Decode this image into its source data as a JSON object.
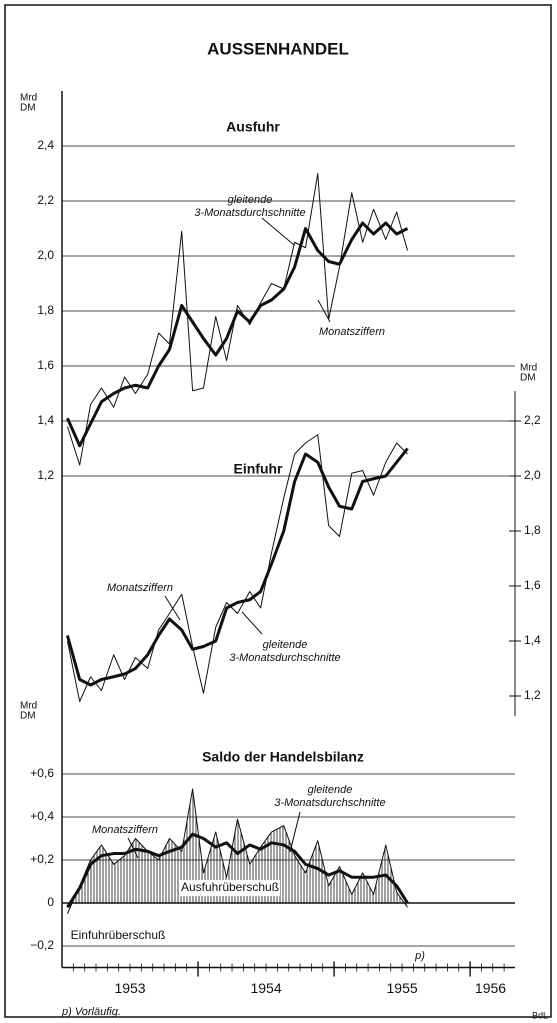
{
  "title": "AUSSENHANDEL",
  "footnote": "p) Vorläufig.",
  "source": "BdL",
  "chart_data": [
    {
      "type": "line",
      "y_label": [
        "Mrd",
        "DM"
      ],
      "y2_label": [
        "Mrd",
        "DM"
      ],
      "x": [
        1953.04,
        1953.13,
        1953.21,
        1953.29,
        1953.38,
        1953.46,
        1953.54,
        1953.63,
        1953.71,
        1953.79,
        1953.88,
        1953.96,
        1954.04,
        1954.13,
        1954.21,
        1954.29,
        1954.38,
        1954.46,
        1954.54,
        1954.63,
        1954.71,
        1954.79,
        1954.88,
        1954.96,
        1955.04,
        1955.13,
        1955.21,
        1955.29,
        1955.38,
        1955.46,
        1955.54
      ],
      "xlim": [
        1953.0,
        1956.33
      ],
      "ylim": [
        0.3,
        2.6
      ],
      "yticks": [
        {
          "value": 2.4,
          "label": "2,4"
        },
        {
          "value": 2.2,
          "label": "2,2"
        },
        {
          "value": 2.0,
          "label": "2,0"
        },
        {
          "value": 1.8,
          "label": "1,8"
        },
        {
          "value": 1.6,
          "label": "1,6"
        },
        {
          "value": 1.4,
          "label": "1,4"
        },
        {
          "value": 1.2,
          "label": "1,2"
        }
      ],
      "y2lim": [
        1.1,
        3.4
      ],
      "y2ticks": [
        {
          "value": 2.2,
          "label": "2,2"
        },
        {
          "value": 2.0,
          "label": "2,0"
        },
        {
          "value": 1.8,
          "label": "1,8"
        },
        {
          "value": 1.6,
          "label": "1,6"
        },
        {
          "value": 1.4,
          "label": "1,4"
        },
        {
          "value": 1.2,
          "label": "1,2"
        }
      ],
      "grid": true,
      "series": [
        {
          "color": "#111",
          "width": 1,
          "values": [
            1.38,
            1.24,
            1.46,
            1.52,
            1.45,
            1.56,
            1.5,
            1.57,
            1.72,
            1.68,
            2.09,
            1.51,
            1.52,
            1.78,
            1.62,
            1.82,
            1.75,
            1.83,
            1.9,
            1.88,
            2.05,
            2.03,
            2.3,
            1.77,
            1.96,
            2.23,
            2.05,
            2.17,
            2.06,
            2.16,
            2.02
          ]
        },
        {
          "color": "#111",
          "width": 3,
          "values": [
            1.41,
            1.31,
            1.39,
            1.47,
            1.5,
            1.52,
            1.53,
            1.52,
            1.6,
            1.66,
            1.82,
            1.76,
            1.7,
            1.64,
            1.7,
            1.8,
            1.76,
            1.82,
            1.84,
            1.88,
            1.96,
            2.1,
            2.02,
            1.98,
            1.97,
            2.06,
            2.12,
            2.08,
            2.12,
            2.08,
            2.1
          ]
        },
        {
          "color": "#111",
          "width": 1,
          "axis": "y2",
          "values": [
            1.4,
            1.18,
            1.27,
            1.22,
            1.35,
            1.26,
            1.34,
            1.3,
            1.44,
            1.5,
            1.57,
            1.38,
            1.21,
            1.45,
            1.54,
            1.5,
            1.58,
            1.52,
            1.72,
            1.92,
            2.08,
            2.12,
            2.15,
            1.82,
            1.78,
            2.01,
            2.02,
            1.93,
            2.05,
            2.12,
            2.08
          ]
        },
        {
          "color": "#111",
          "width": 3,
          "axis": "y2",
          "values": [
            1.42,
            1.26,
            1.24,
            1.26,
            1.27,
            1.28,
            1.3,
            1.35,
            1.42,
            1.48,
            1.44,
            1.37,
            1.38,
            1.4,
            1.52,
            1.54,
            1.55,
            1.58,
            1.68,
            1.8,
            1.98,
            2.08,
            2.05,
            1.96,
            1.89,
            1.88,
            1.98,
            1.99,
            2.0,
            2.05,
            2.1
          ]
        }
      ],
      "annotations": [
        {
          "text": [
            "Ausfuhr"
          ]
        },
        {
          "text": [
            "gleitende",
            "3-Monatsdurchschnitte"
          ]
        },
        {
          "text": [
            "Monatsziffern"
          ]
        },
        {
          "text": [
            "Einfuhr"
          ]
        },
        {
          "text": [
            "Monatsziffern"
          ]
        },
        {
          "text": [
            "gleitende",
            "3-Monatsdurchschnitte"
          ]
        }
      ]
    },
    {
      "type": "area",
      "y_label": [
        "Mrd",
        "DM"
      ],
      "x": [
        1953.04,
        1953.13,
        1953.21,
        1953.29,
        1953.38,
        1953.46,
        1953.54,
        1953.63,
        1953.71,
        1953.79,
        1953.88,
        1953.96,
        1954.04,
        1954.13,
        1954.21,
        1954.29,
        1954.38,
        1954.46,
        1954.54,
        1954.63,
        1954.71,
        1954.79,
        1954.88,
        1954.96,
        1955.04,
        1955.13,
        1955.21,
        1955.29,
        1955.38,
        1955.46,
        1955.54
      ],
      "xlim": [
        1953.0,
        1956.33
      ],
      "xticks": [
        {
          "value": 1953.5,
          "label": "1953"
        },
        {
          "value": 1954.5,
          "label": "1954"
        },
        {
          "value": 1955.5,
          "label": "1955"
        },
        {
          "value": 1956.15,
          "label": "1956"
        }
      ],
      "ylim": [
        -0.3,
        0.7
      ],
      "yticks": [
        {
          "value": 0.6,
          "label": "+0,6"
        },
        {
          "value": 0.4,
          "label": "+0,4"
        },
        {
          "value": 0.2,
          "label": "+0,2"
        },
        0,
        {
          "value": -0.2,
          "label": "−0,2"
        }
      ],
      "grid": true,
      "series": [
        {
          "color": "#111",
          "width": 1,
          "values": [
            -0.05,
            0.08,
            0.2,
            0.27,
            0.18,
            0.22,
            0.3,
            0.24,
            0.2,
            0.3,
            0.24,
            0.53,
            0.14,
            0.33,
            0.12,
            0.39,
            0.18,
            0.26,
            0.33,
            0.36,
            0.22,
            0.14,
            0.29,
            0.08,
            0.17,
            0.04,
            0.14,
            0.04,
            0.27,
            0.05,
            -0.02
          ]
        },
        {
          "color": "#111",
          "width": 3,
          "values": [
            -0.02,
            0.07,
            0.18,
            0.22,
            0.23,
            0.23,
            0.25,
            0.24,
            0.22,
            0.24,
            0.26,
            0.32,
            0.3,
            0.26,
            0.28,
            0.23,
            0.27,
            0.25,
            0.28,
            0.27,
            0.24,
            0.18,
            0.16,
            0.13,
            0.15,
            0.12,
            0.12,
            0.12,
            0.13,
            0.08,
            0.0
          ]
        }
      ],
      "annotations": [
        {
          "text": [
            "Saldo der Handelsbilanz"
          ]
        },
        {
          "text": [
            "Monatsziffern"
          ]
        },
        {
          "text": [
            "gleitende",
            "3-Monatsdurchschnitte"
          ]
        },
        {
          "text": [
            "Ausfuhrüberschuß"
          ]
        },
        {
          "text": [
            "Einfuhrüberschuß"
          ]
        },
        {
          "text": [
            "p)"
          ]
        }
      ]
    }
  ]
}
